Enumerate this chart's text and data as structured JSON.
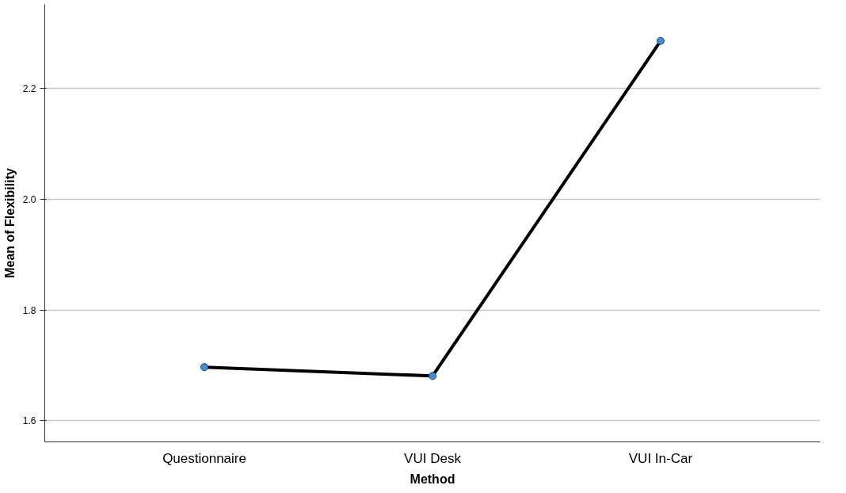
{
  "chart_data": {
    "type": "line",
    "xlabel": "Method",
    "ylabel": "Mean of Flexibility",
    "categories": [
      "Questionnaire",
      "VUI Desk",
      "VUI In-Car"
    ],
    "series": [
      {
        "color": "#000000",
        "values": [
          1.697,
          1.681,
          2.286
        ]
      }
    ],
    "ylim": [
      1.562,
      2.352
    ],
    "yticks": [
      {
        "value": 1.6,
        "label": "1.6"
      },
      {
        "value": 1.8,
        "label": "1.8"
      },
      {
        "value": 2.0,
        "label": "2.0"
      },
      {
        "value": 2.2,
        "label": "2.2"
      }
    ],
    "grid": "y",
    "marker": "circle",
    "line_style": "solid"
  }
}
